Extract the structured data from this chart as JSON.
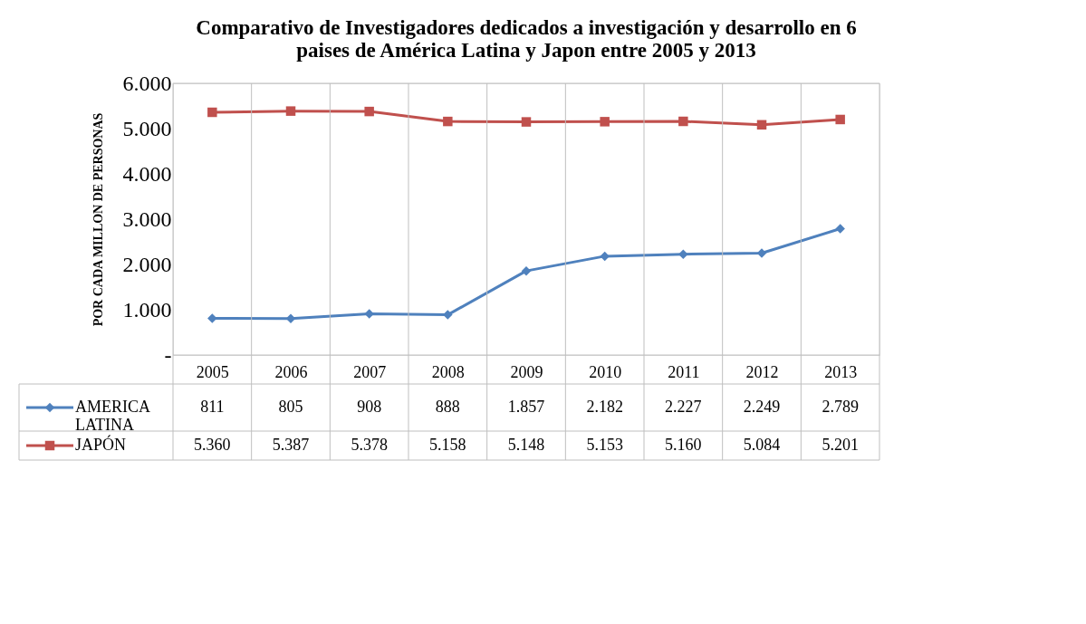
{
  "chart_data": {
    "type": "line",
    "title": "Comparativo de Investigadores dedicados a investigación y desarrollo en 6 paises de América Latina y Japon entre 2005 y 2013",
    "ylabel": "POR CADA MILLON DE PERSONAS",
    "categories": [
      "2005",
      "2006",
      "2007",
      "2008",
      "2009",
      "2010",
      "2011",
      "2012",
      "2013"
    ],
    "series": [
      {
        "name": "AMERICA LATINA",
        "color": "#4f81bd",
        "marker": "diamond",
        "values": [
          811,
          805,
          908,
          888,
          1857,
          2182,
          2227,
          2249,
          2789
        ],
        "value_labels": [
          "811",
          "805",
          "908",
          "888",
          "1.857",
          "2.182",
          "2.227",
          "2.249",
          "2.789"
        ]
      },
      {
        "name": "JAPÓN",
        "color": "#c0504d",
        "marker": "square",
        "values": [
          5360,
          5387,
          5378,
          5158,
          5148,
          5153,
          5160,
          5084,
          5201
        ],
        "value_labels": [
          "5.360",
          "5.387",
          "5.378",
          "5.158",
          "5.148",
          "5.153",
          "5.160",
          "5.084",
          "5.201"
        ]
      }
    ],
    "ylim": [
      0,
      6000
    ],
    "yticks": [
      {
        "value": 0,
        "label": "-"
      },
      {
        "value": 1000,
        "label": "1.000"
      },
      {
        "value": 2000,
        "label": "2.000"
      },
      {
        "value": 3000,
        "label": "3.000"
      },
      {
        "value": 4000,
        "label": "4.000"
      },
      {
        "value": 5000,
        "label": "5.000"
      },
      {
        "value": 6000,
        "label": "6.000"
      }
    ],
    "grid": false,
    "legend": "bottom",
    "line_style": "solid"
  }
}
